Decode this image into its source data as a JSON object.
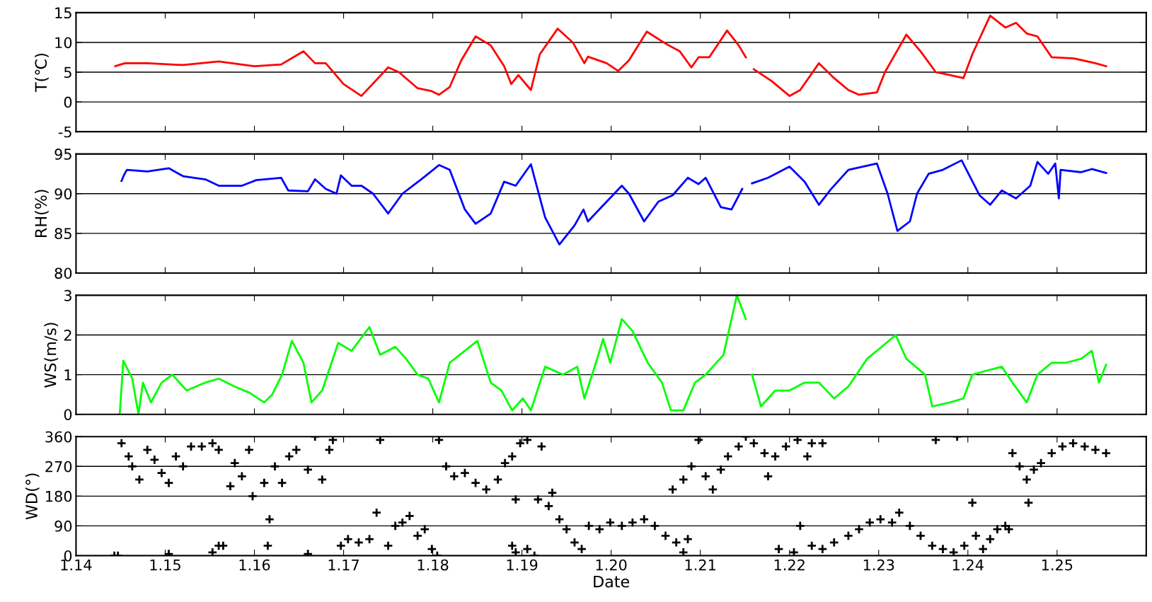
{
  "chart_data": [
    {
      "type": "line",
      "ylabel": "T(℃)",
      "xlim": [
        1.14,
        1.26
      ],
      "xticks": [
        1.14,
        1.15,
        1.16,
        1.17,
        1.18,
        1.19,
        1.2,
        1.21,
        1.22,
        1.23,
        1.24,
        1.25
      ],
      "ylim": [
        -5,
        15
      ],
      "yticks": [
        -5,
        0,
        5,
        10,
        15
      ],
      "grid": "y",
      "tick_labels": "y",
      "series": [
        {
          "color": "#ff0000",
          "x": [
            1.1444,
            1.145,
            1.1455,
            1.148,
            1.152,
            1.156,
            1.16,
            1.163,
            1.1655,
            1.1668,
            1.168,
            1.17,
            1.172,
            1.175,
            1.1762,
            1.1783,
            1.1799,
            1.1807,
            1.1819,
            1.1832,
            1.1848,
            1.1865,
            1.188,
            1.1888,
            1.1896,
            1.191,
            1.192,
            1.194,
            1.1957,
            1.197,
            1.1974,
            1.1995,
            1.2008,
            1.202,
            1.204,
            1.2061,
            1.2077,
            1.209,
            1.2098,
            1.211,
            1.213,
            1.2143,
            1.2151,
            1.2155,
            1.216,
            1.218,
            1.22,
            1.2212,
            1.2233,
            1.225,
            1.2266,
            1.2278,
            1.2298,
            1.2307,
            1.2331,
            1.2347,
            1.2364,
            1.238,
            1.2395,
            1.2405,
            1.2425,
            1.2442,
            1.2454,
            1.2466,
            1.2478,
            1.2494,
            1.2519,
            1.2543,
            1.2555
          ],
          "values": [
            6.0,
            6.3,
            6.5,
            6.5,
            6.2,
            6.8,
            6.0,
            6.3,
            8.5,
            6.5,
            6.5,
            3,
            1.0,
            5.8,
            5,
            2.3,
            1.8,
            1.2,
            2.5,
            7,
            11,
            9.5,
            6,
            3,
            4.5,
            2,
            8,
            12.3,
            10,
            6.5,
            7.6,
            6.5,
            5.2,
            7,
            11.8,
            9.8,
            8.5,
            5.8,
            7.5,
            7.5,
            12,
            9.5,
            7.5,
            null,
            5.5,
            3.5,
            1.0,
            2,
            6.5,
            4,
            2,
            1.2,
            1.6,
            5,
            11.3,
            8.5,
            5,
            4.5,
            4,
            8,
            14.5,
            12.5,
            13.3,
            11.5,
            11,
            7.5,
            7.3,
            6.5,
            6.0
          ]
        }
      ]
    },
    {
      "type": "line",
      "ylabel": "RH(%)",
      "xlim": [
        1.14,
        1.26
      ],
      "xticks": [
        1.14,
        1.15,
        1.16,
        1.17,
        1.18,
        1.19,
        1.2,
        1.21,
        1.22,
        1.23,
        1.24,
        1.25
      ],
      "ylim": [
        80,
        95
      ],
      "yticks": [
        80,
        85,
        90,
        95
      ],
      "grid": "y",
      "tick_labels": "y",
      "series": [
        {
          "color": "#0000ff",
          "x": [
            1.1451,
            1.1454,
            1.1457,
            1.148,
            1.1504,
            1.152,
            1.1545,
            1.156,
            1.1586,
            1.1602,
            1.163,
            1.1638,
            1.166,
            1.1668,
            1.168,
            1.1692,
            1.1697,
            1.1709,
            1.172,
            1.1733,
            1.175,
            1.1766,
            1.1787,
            1.1807,
            1.1819,
            1.1836,
            1.1848,
            1.1865,
            1.188,
            1.1893,
            1.191,
            1.1926,
            1.1942,
            1.1959,
            1.1969,
            1.1974,
            1.1995,
            1.2012,
            1.202,
            1.2037,
            1.2053,
            1.2069,
            1.2086,
            1.2098,
            1.2106,
            1.2123,
            1.2135,
            1.2147,
            1.2153,
            1.2158,
            1.2176,
            1.22,
            1.2217,
            1.2233,
            1.2246,
            1.2266,
            1.2298,
            1.231,
            1.2321,
            1.2335,
            1.2343,
            1.2356,
            1.2372,
            1.2393,
            1.2413,
            1.2425,
            1.2438,
            1.2454,
            1.247,
            1.2478,
            1.249,
            1.2498,
            1.2502,
            1.2504,
            1.2527,
            1.2539,
            1.2555
          ],
          "values": [
            91.6,
            92.4,
            93.0,
            92.8,
            93.2,
            92.2,
            91.8,
            91,
            91.0,
            91.7,
            92,
            90.4,
            90.3,
            91.8,
            90.6,
            90.0,
            92.3,
            91,
            91,
            90,
            87.5,
            90,
            91.8,
            93.6,
            93,
            88,
            86.2,
            87.5,
            91.5,
            91,
            93.7,
            87,
            83.6,
            86,
            88,
            86.5,
            89,
            91,
            90,
            86.5,
            89,
            89.8,
            92,
            91.2,
            92,
            88.3,
            88,
            90.6,
            null,
            91.3,
            92,
            93.4,
            91.5,
            88.6,
            90.5,
            93,
            93.8,
            90,
            85.3,
            86.5,
            90,
            92.5,
            93,
            94.2,
            89.8,
            88.6,
            90.4,
            89.4,
            91,
            94,
            92.5,
            93.8,
            89.4,
            93,
            92.7,
            93.1,
            92.6
          ]
        }
      ]
    },
    {
      "type": "line",
      "ylabel": "WS(m/s)",
      "xlim": [
        1.14,
        1.26
      ],
      "xticks": [
        1.14,
        1.15,
        1.16,
        1.17,
        1.18,
        1.19,
        1.2,
        1.21,
        1.22,
        1.23,
        1.24,
        1.25
      ],
      "ylim": [
        0,
        3
      ],
      "yticks": [
        0,
        1,
        2,
        3
      ],
      "grid": "y",
      "tick_labels": "y",
      "series": [
        {
          "color": "#00ff00",
          "x": [
            1.1449,
            1.1453,
            1.1463,
            1.147,
            1.1475,
            1.1484,
            1.1496,
            1.1508,
            1.1524,
            1.1545,
            1.156,
            1.1578,
            1.1594,
            1.1611,
            1.162,
            1.1631,
            1.1642,
            1.1655,
            1.1664,
            1.1676,
            1.1694,
            1.1709,
            1.1729,
            1.1741,
            1.1758,
            1.177,
            1.1783,
            1.1795,
            1.1807,
            1.1819,
            1.1836,
            1.185,
            1.1865,
            1.1877,
            1.1889,
            1.1901,
            1.191,
            1.1926,
            1.1946,
            1.1962,
            1.197,
            1.1983,
            1.1991,
            1.1999,
            1.2012,
            1.2024,
            1.2041,
            1.2057,
            1.2067,
            1.2081,
            1.2094,
            1.2106,
            1.2126,
            1.2141,
            1.2151,
            1.2155,
            1.2158,
            1.2168,
            1.2184,
            1.22,
            1.2217,
            1.2233,
            1.225,
            1.2266,
            1.2287,
            1.2298,
            1.2319,
            1.2331,
            1.2352,
            1.236,
            1.238,
            1.2395,
            1.2405,
            1.2421,
            1.2438,
            1.245,
            1.2466,
            1.2478,
            1.2494,
            1.251,
            1.2527,
            1.2539,
            1.2547,
            1.2555
          ],
          "values": [
            0,
            1.35,
            0.9,
            0,
            0.8,
            0.3,
            0.8,
            1.0,
            0.6,
            0.8,
            0.9,
            0.7,
            0.55,
            0.3,
            0.5,
            1.0,
            1.85,
            1.3,
            0.3,
            0.6,
            1.8,
            1.6,
            2.2,
            1.5,
            1.7,
            1.4,
            1.0,
            0.9,
            0.3,
            1.3,
            1.6,
            1.85,
            0.8,
            0.6,
            0.1,
            0.4,
            0.1,
            1.2,
            1.0,
            1.2,
            0.4,
            1.3,
            1.9,
            1.3,
            2.4,
            2.1,
            1.3,
            0.8,
            0.1,
            0.1,
            0.8,
            1.0,
            1.5,
            3.0,
            2.4,
            null,
            1.0,
            0.2,
            0.6,
            0.6,
            0.8,
            0.8,
            0.4,
            0.7,
            1.4,
            1.6,
            2.0,
            1.4,
            1.0,
            0.2,
            0.3,
            0.4,
            1.0,
            1.1,
            1.2,
            0.8,
            0.3,
            1.0,
            1.3,
            1.3,
            1.4,
            1.6,
            0.8,
            1.25
          ]
        }
      ]
    },
    {
      "type": "scatter",
      "ylabel": "WD(°)",
      "xlabel": "Date",
      "marker": "cross",
      "xlim": [
        1.14,
        1.26
      ],
      "xticks": [
        1.14,
        1.15,
        1.16,
        1.17,
        1.18,
        1.19,
        {
          "value": 1.2,
          "label": "1.20"
        },
        1.21,
        1.22,
        1.23,
        1.24,
        1.25
      ],
      "ylim": [
        0,
        360
      ],
      "yticks": [
        0,
        90,
        180,
        270,
        360
      ],
      "grid": "y",
      "series": [
        {
          "color": "#000000",
          "x": [
            1.1443,
            1.1447,
            1.1451,
            1.1459,
            1.1463,
            1.1471,
            1.148,
            1.1488,
            1.1496,
            1.1504,
            1.1512,
            1.152,
            1.1529,
            1.1541,
            1.1553,
            1.156,
            1.1565,
            1.1573,
            1.1578,
            1.1586,
            1.1594,
            1.1598,
            1.1611,
            1.1615,
            1.1617,
            1.1623,
            1.1631,
            1.1639,
            1.1647,
            1.166,
            1.1668,
            1.1676,
            1.1684,
            1.1688,
            1.1504,
            1.1553,
            1.156,
            1.166,
            1.1697,
            1.1705,
            1.1717,
            1.1729,
            1.1737,
            1.1741,
            1.175,
            1.1758,
            1.1766,
            1.1774,
            1.1783,
            1.1791,
            1.1799,
            1.1805,
            1.1807,
            1.1815,
            1.1824,
            1.1836,
            1.1848,
            1.186,
            1.1873,
            1.1881,
            1.1889,
            1.1898,
            1.1906,
            1.1922,
            1.1889,
            1.1893,
            1.1906,
            1.1914,
            1.1893,
            1.1918,
            1.193,
            1.1934,
            1.1942,
            1.195,
            1.1959,
            1.1967,
            1.1975,
            1.1987,
            1.1999,
            1.2012,
            1.2024,
            1.2037,
            1.2049,
            1.2061,
            1.2073,
            1.2081,
            1.2086,
            1.2069,
            1.2081,
            1.209,
            1.2098,
            1.2106,
            1.2114,
            1.2123,
            1.2131,
            1.2143,
            1.2151,
            1.216,
            1.2172,
            1.2176,
            1.2184,
            1.2196,
            1.2209,
            1.2225,
            1.2237,
            1.222,
            1.2188,
            1.2205,
            1.2212,
            1.2225,
            1.2237,
            1.225,
            1.2266,
            1.2278,
            1.229,
            1.2302,
            1.2315,
            1.2323,
            1.2335,
            1.2347,
            1.236,
            1.2372,
            1.2384,
            1.2396,
            1.2364,
            1.2388,
            1.2405,
            1.2409,
            1.2417,
            1.2425,
            1.2433,
            1.2442,
            1.2446,
            1.245,
            1.2458,
            1.2466,
            1.2468,
            1.2474,
            1.2482,
            1.2494,
            1.2506,
            1.2518,
            1.2531,
            1.2543,
            1.2555
          ],
          "values": [
            0,
            0,
            340,
            300,
            270,
            230,
            320,
            290,
            250,
            220,
            300,
            270,
            330,
            330,
            340,
            320,
            30,
            210,
            280,
            240,
            320,
            180,
            220,
            30,
            110,
            270,
            220,
            300,
            320,
            260,
            360,
            230,
            320,
            350,
            5,
            10,
            30,
            5,
            30,
            50,
            40,
            50,
            130,
            350,
            30,
            90,
            100,
            120,
            60,
            80,
            20,
            0,
            350,
            270,
            240,
            250,
            220,
            200,
            230,
            280,
            300,
            340,
            350,
            330,
            30,
            10,
            20,
            0,
            170,
            170,
            150,
            190,
            110,
            80,
            40,
            20,
            90,
            80,
            100,
            90,
            100,
            110,
            90,
            60,
            40,
            10,
            50,
            200,
            230,
            270,
            350,
            240,
            200,
            260,
            300,
            330,
            360,
            340,
            310,
            240,
            300,
            330,
            350,
            340,
            340,
            300,
            20,
            10,
            90,
            30,
            20,
            40,
            60,
            80,
            100,
            110,
            100,
            130,
            90,
            60,
            30,
            20,
            10,
            30,
            350,
            360,
            160,
            60,
            20,
            50,
            80,
            90,
            80,
            310,
            270,
            230,
            160,
            260,
            280,
            310,
            330,
            340,
            330,
            320,
            310
          ]
        }
      ]
    }
  ]
}
